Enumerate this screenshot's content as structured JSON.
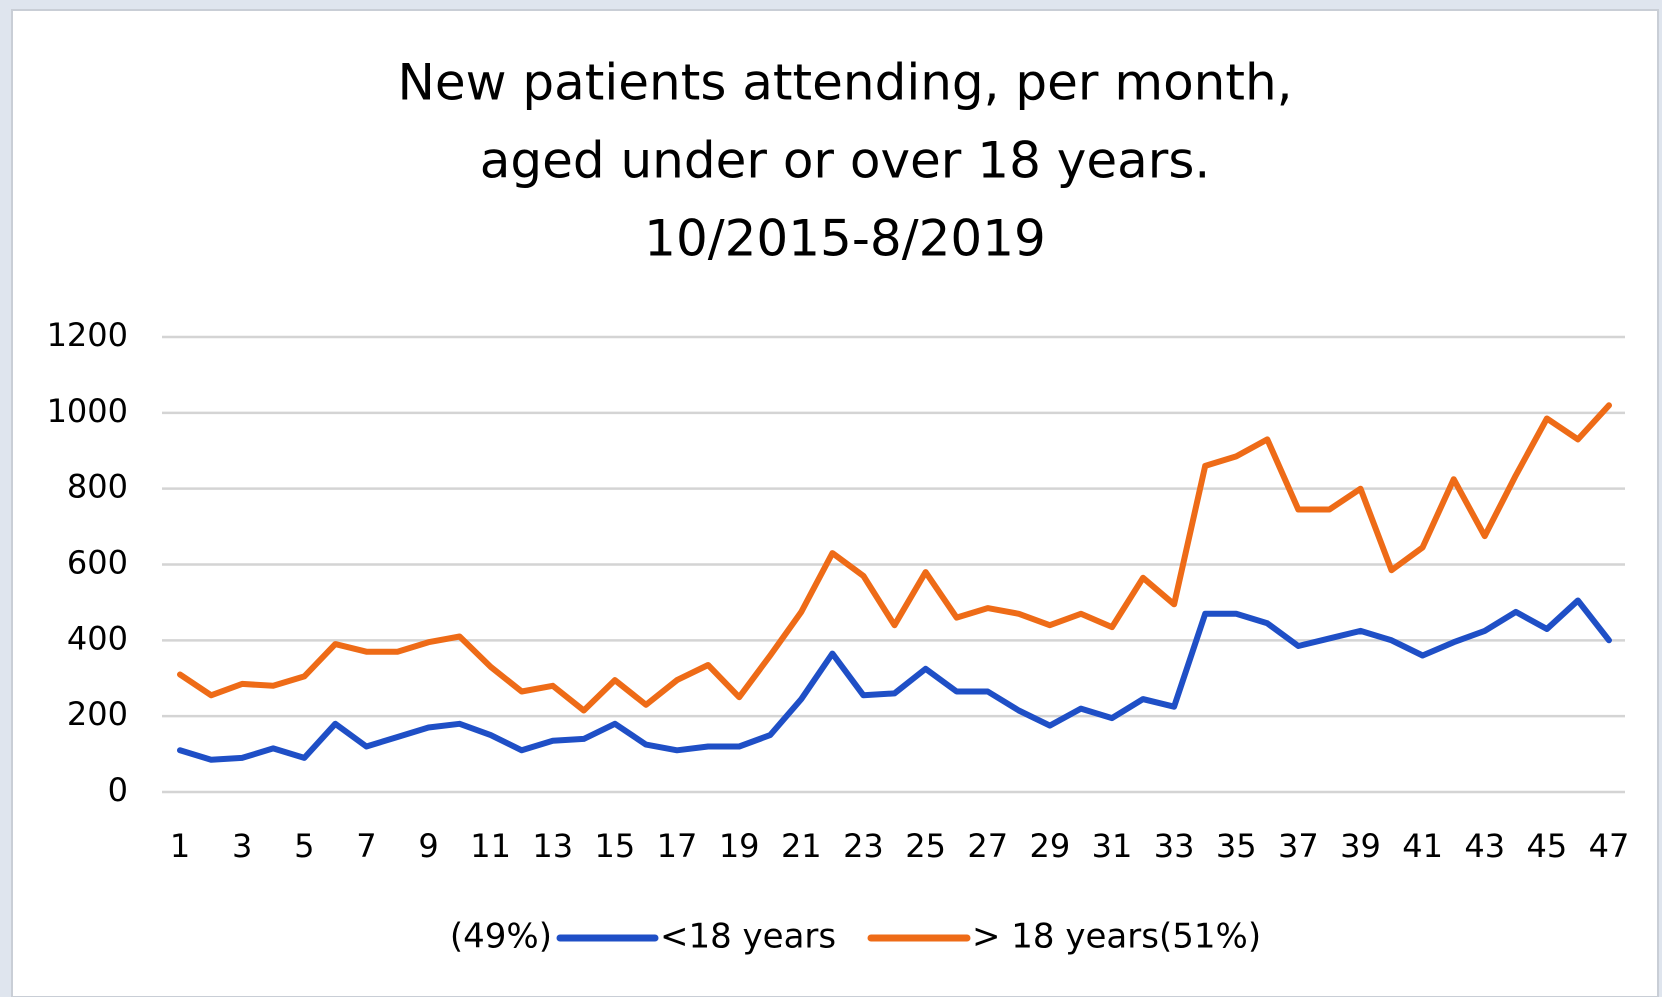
{
  "chart_data": {
    "type": "line",
    "title": [
      "New patients attending,  per month,",
      "aged under or over 18 years.",
      "10/2015-8/2019"
    ],
    "x": [
      1,
      2,
      3,
      4,
      5,
      6,
      7,
      8,
      9,
      10,
      11,
      12,
      13,
      14,
      15,
      16,
      17,
      18,
      19,
      20,
      21,
      22,
      23,
      24,
      25,
      26,
      27,
      28,
      29,
      30,
      31,
      32,
      33,
      34,
      35,
      36,
      37,
      38,
      39,
      40,
      41,
      42,
      43,
      44,
      45,
      46,
      47
    ],
    "xlim": [
      1,
      47
    ],
    "xticks": [
      1,
      3,
      5,
      7,
      9,
      11,
      13,
      15,
      17,
      19,
      21,
      23,
      25,
      27,
      29,
      31,
      33,
      35,
      37,
      39,
      41,
      43,
      45,
      47
    ],
    "ylim": [
      0,
      1200
    ],
    "yticks": [
      0,
      200,
      400,
      600,
      800,
      1000,
      1200
    ],
    "grid": true,
    "legend": "bottom",
    "annotations": [
      "(49%)",
      "(51%)"
    ],
    "series": [
      {
        "name": "<18 years",
        "color": "#1f4fc6",
        "values": [
          110,
          85,
          90,
          115,
          90,
          180,
          120,
          145,
          170,
          180,
          150,
          110,
          135,
          140,
          180,
          125,
          110,
          120,
          120,
          150,
          245,
          365,
          255,
          260,
          325,
          265,
          265,
          215,
          175,
          220,
          195,
          245,
          225,
          470,
          470,
          445,
          385,
          405,
          425,
          400,
          360,
          395,
          425,
          475,
          430,
          505,
          400
        ]
      },
      {
        "name": "> 18 years",
        "color": "#ee6b17",
        "values": [
          310,
          255,
          285,
          280,
          305,
          390,
          370,
          370,
          395,
          410,
          330,
          265,
          280,
          215,
          295,
          230,
          295,
          335,
          250,
          360,
          475,
          630,
          570,
          440,
          580,
          460,
          485,
          470,
          440,
          470,
          435,
          565,
          495,
          860,
          885,
          930,
          745,
          745,
          800,
          585,
          645,
          825,
          675,
          835,
          985,
          930,
          1020
        ]
      }
    ]
  }
}
